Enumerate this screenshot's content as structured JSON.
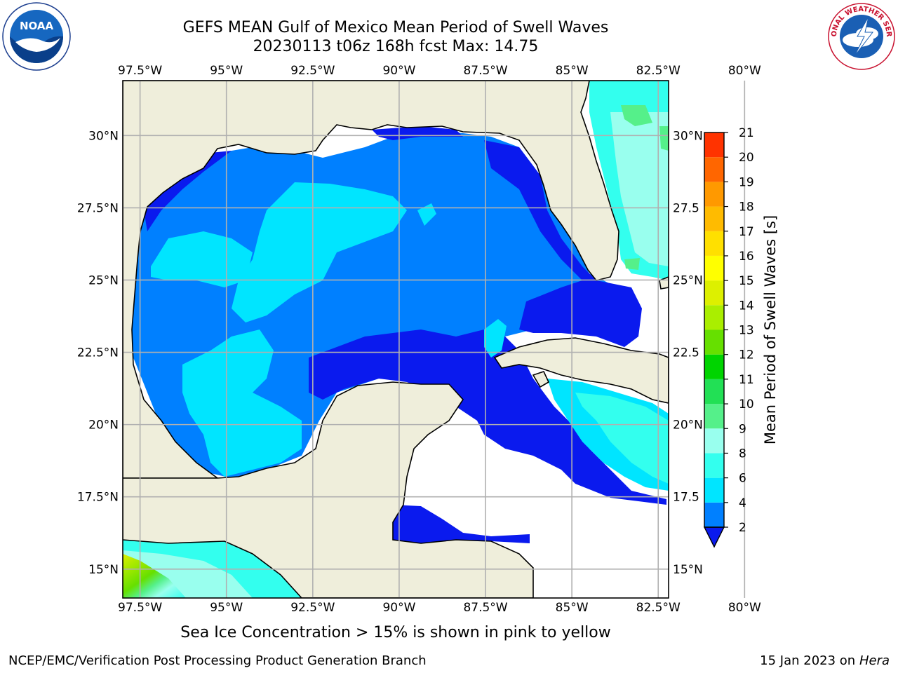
{
  "title": {
    "line1": "GEFS MEAN Gulf of Mexico Mean Period of Swell Waves",
    "line2": "20230113 t06z 168h fcst   Max: 14.75"
  },
  "map": {
    "lon_range": [
      -98.0,
      -82.2
    ],
    "lat_range": [
      14.0,
      31.9
    ],
    "lon_ticks": [
      "97.5°W",
      "95°W",
      "92.5°W",
      "90°W",
      "87.5°W",
      "85°W",
      "82.5°W",
      "80°W"
    ],
    "lat_ticks_left": [
      "30°N",
      "27.5°N",
      "25°N",
      "22.5°N",
      "20°N",
      "17.5°N",
      "15°N"
    ],
    "lat_ticks_right": [
      "30°N",
      "27.5",
      "25°N",
      "22.5",
      "20°N",
      "17.5",
      "15°N"
    ],
    "land_color": "#efeedb",
    "grid_color": "#b0b0b0",
    "missing_color": "#ffffff"
  },
  "colorbar": {
    "label": "Mean Period of Swell Waves [s]",
    "ticks": [
      "2",
      "4",
      "6",
      "8",
      "9",
      "10",
      "11",
      "12",
      "13",
      "14",
      "15",
      "16",
      "17",
      "18",
      "19",
      "20",
      "21"
    ],
    "colors": [
      "#0080ff",
      "#00e5ff",
      "#33ffee",
      "#99ffee",
      "#55f08a",
      "#22e055",
      "#00d400",
      "#66e000",
      "#aaee00",
      "#ddf000",
      "#ffff00",
      "#ffe000",
      "#ffbb00",
      "#ff9900",
      "#ff6600",
      "#ff3300",
      "#ff0000"
    ],
    "under_color": "#0a1aee",
    "extend": "min"
  },
  "caption": "Sea Ice Concentration > 15% is shown in pink to yellow",
  "footer": {
    "credit": "NCEP/EMC/Verification Post Processing Product Generation Branch",
    "date": "15 Jan 2023 on ",
    "machine": "Hera"
  },
  "logos": {
    "noaa_text": "NOAA",
    "nws_ring_text": "NATIONAL WEATHER SERVICE"
  }
}
